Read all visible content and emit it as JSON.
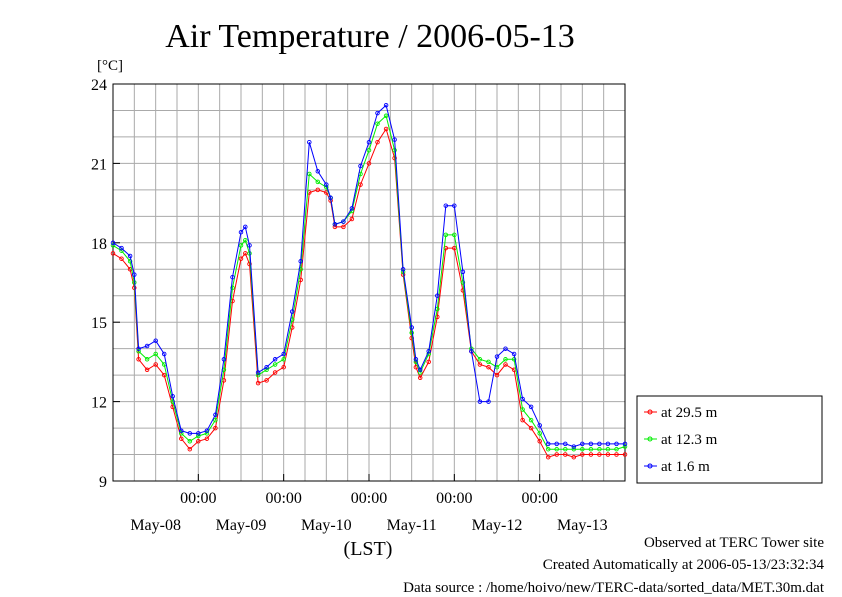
{
  "chart_data": {
    "type": "line",
    "title": "Air Temperature / 2006-05-13",
    "ylabel": "[°C]",
    "xlabel": "(LST)",
    "ylim": [
      9,
      24
    ],
    "yticks": [
      9,
      12,
      15,
      18,
      21,
      24
    ],
    "xlim": [
      0,
      6
    ],
    "xlim_note": "x values are days since 2006-05-07 12:00 LST",
    "x_ticks": [
      {
        "x": 1,
        "line1": "00:00",
        "line2": ""
      },
      {
        "x": 2,
        "line1": "00:00",
        "line2": ""
      },
      {
        "x": 3,
        "line1": "00:00",
        "line2": ""
      },
      {
        "x": 4,
        "line1": "00:00",
        "line2": ""
      },
      {
        "x": 5,
        "line1": "00:00",
        "line2": ""
      }
    ],
    "x_date_labels": [
      {
        "x": 0.5,
        "label": "May-08"
      },
      {
        "x": 1.5,
        "label": "May-09"
      },
      {
        "x": 2.5,
        "label": "May-10"
      },
      {
        "x": 3.5,
        "label": "May-11"
      },
      {
        "x": 4.5,
        "label": "May-12"
      },
      {
        "x": 5.5,
        "label": "May-13"
      }
    ],
    "grid": true,
    "legend_position": "right",
    "series": [
      {
        "name": "at 29.5 m",
        "color": "#ff0000",
        "x": [
          0,
          0.1,
          0.2,
          0.25,
          0.3,
          0.4,
          0.5,
          0.6,
          0.7,
          0.8,
          0.9,
          1.0,
          1.1,
          1.2,
          1.3,
          1.4,
          1.5,
          1.55,
          1.6,
          1.7,
          1.8,
          1.9,
          2.0,
          2.1,
          2.2,
          2.3,
          2.4,
          2.5,
          2.55,
          2.6,
          2.7,
          2.8,
          2.9,
          3.0,
          3.1,
          3.2,
          3.3,
          3.4,
          3.5,
          3.55,
          3.6,
          3.7,
          3.8,
          3.9,
          4.0,
          4.1,
          4.2,
          4.3,
          4.4,
          4.5,
          4.6,
          4.7,
          4.8,
          4.9,
          5.0,
          5.1,
          5.2,
          5.3,
          5.4,
          5.5,
          5.6,
          5.7,
          5.8,
          5.9,
          6.0
        ],
        "values": [
          17.6,
          17.4,
          17.0,
          16.3,
          13.6,
          13.2,
          13.4,
          13.0,
          11.8,
          10.6,
          10.2,
          10.5,
          10.6,
          11.0,
          12.8,
          15.8,
          17.4,
          17.6,
          17.2,
          12.7,
          12.8,
          13.1,
          13.3,
          14.8,
          16.6,
          19.9,
          20.0,
          19.9,
          19.6,
          18.6,
          18.6,
          18.9,
          20.2,
          21.0,
          21.8,
          22.3,
          21.2,
          16.8,
          14.4,
          13.3,
          12.9,
          13.5,
          15.2,
          17.8,
          17.8,
          16.2,
          13.9,
          13.4,
          13.3,
          13.0,
          13.4,
          13.2,
          11.3,
          11.0,
          10.5,
          9.9,
          10.0,
          10.0,
          9.9,
          10.0,
          10.0,
          10.0,
          10.0,
          10.0,
          10.0
        ]
      },
      {
        "name": "at 12.3 m",
        "color": "#00ee00",
        "x": [
          0,
          0.1,
          0.2,
          0.25,
          0.3,
          0.4,
          0.5,
          0.6,
          0.7,
          0.8,
          0.9,
          1.0,
          1.1,
          1.2,
          1.3,
          1.4,
          1.5,
          1.55,
          1.6,
          1.7,
          1.8,
          1.9,
          2.0,
          2.1,
          2.2,
          2.3,
          2.4,
          2.5,
          2.55,
          2.6,
          2.7,
          2.8,
          2.9,
          3.0,
          3.1,
          3.2,
          3.3,
          3.4,
          3.5,
          3.55,
          3.6,
          3.7,
          3.8,
          3.9,
          4.0,
          4.1,
          4.2,
          4.3,
          4.4,
          4.5,
          4.6,
          4.7,
          4.8,
          4.9,
          5.0,
          5.1,
          5.2,
          5.3,
          5.4,
          5.5,
          5.6,
          5.7,
          5.8,
          5.9,
          6.0
        ],
        "values": [
          17.9,
          17.7,
          17.3,
          16.5,
          13.9,
          13.6,
          13.8,
          13.4,
          12.0,
          10.8,
          10.5,
          10.7,
          10.8,
          11.3,
          13.2,
          16.3,
          17.9,
          18.1,
          17.6,
          13.0,
          13.2,
          13.4,
          13.6,
          15.1,
          17.0,
          20.6,
          20.3,
          20.1,
          19.7,
          18.7,
          18.8,
          19.2,
          20.6,
          21.5,
          22.5,
          22.8,
          21.5,
          16.9,
          14.6,
          13.5,
          13.1,
          13.8,
          15.5,
          18.3,
          18.3,
          16.5,
          14.0,
          13.6,
          13.5,
          13.3,
          13.6,
          13.6,
          11.7,
          11.3,
          10.8,
          10.2,
          10.2,
          10.2,
          10.2,
          10.2,
          10.2,
          10.2,
          10.2,
          10.2,
          10.3
        ]
      },
      {
        "name": "at 1.6 m",
        "color": "#0000ff",
        "x": [
          0,
          0.1,
          0.2,
          0.25,
          0.3,
          0.4,
          0.5,
          0.6,
          0.7,
          0.8,
          0.9,
          1.0,
          1.1,
          1.2,
          1.3,
          1.4,
          1.5,
          1.55,
          1.6,
          1.7,
          1.8,
          1.9,
          2.0,
          2.1,
          2.2,
          2.3,
          2.4,
          2.5,
          2.55,
          2.6,
          2.7,
          2.8,
          2.9,
          3.0,
          3.1,
          3.2,
          3.3,
          3.4,
          3.5,
          3.55,
          3.6,
          3.7,
          3.8,
          3.9,
          4.0,
          4.1,
          4.2,
          4.3,
          4.4,
          4.5,
          4.6,
          4.7,
          4.8,
          4.9,
          5.0,
          5.1,
          5.2,
          5.3,
          5.4,
          5.5,
          5.6,
          5.7,
          5.8,
          5.9,
          6.0
        ],
        "values": [
          18.0,
          17.8,
          17.5,
          16.8,
          14.0,
          14.1,
          14.3,
          13.8,
          12.2,
          10.9,
          10.8,
          10.8,
          10.9,
          11.5,
          13.6,
          16.7,
          18.4,
          18.6,
          17.9,
          13.1,
          13.3,
          13.6,
          13.8,
          15.4,
          17.3,
          21.8,
          20.7,
          20.2,
          19.7,
          18.7,
          18.8,
          19.3,
          20.9,
          21.8,
          22.9,
          23.2,
          21.9,
          17.0,
          14.8,
          13.6,
          13.2,
          13.9,
          16.0,
          19.4,
          19.4,
          16.9,
          13.9,
          12.0,
          12.0,
          13.7,
          14.0,
          13.8,
          12.1,
          11.8,
          11.1,
          10.4,
          10.4,
          10.4,
          10.3,
          10.4,
          10.4,
          10.4,
          10.4,
          10.4,
          10.4
        ]
      }
    ]
  },
  "footer": {
    "observed": "Observed at TERC Tower site",
    "created": "Created Automatically at 2006-05-13/23:32:34",
    "source": "Data source : /home/hoivo/new/TERC-data/sorted_data/MET.30m.dat"
  }
}
